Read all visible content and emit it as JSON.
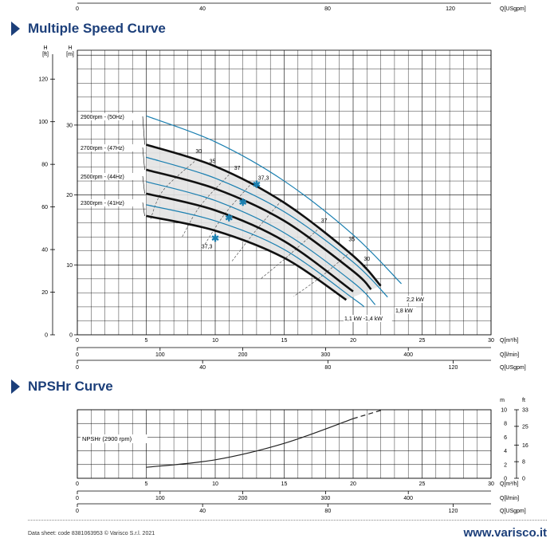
{
  "top_strip": {
    "labels": [
      "0",
      "40",
      "80",
      "120"
    ],
    "unit": "Q[USgpm]"
  },
  "sections": {
    "msc_title": "Multiple Speed Curve",
    "npshr_title": "NPSHr Curve"
  },
  "footer": {
    "left": "Data sheet: code 8381063953 © Varisco S.r.l. 2021",
    "right": "www.varisco.it"
  },
  "colors": {
    "brand": "#1c3f7a",
    "curve_black": "#111111",
    "curve_blue": "#1a7fb0",
    "band": "#e3e3e3"
  },
  "chart_data": [
    {
      "type": "line",
      "title": "Multiple Speed Curve",
      "x_axes": [
        {
          "label": "Q[m³/h]",
          "ticks": [
            0,
            5,
            10,
            15,
            20,
            25,
            30
          ],
          "range": [
            0,
            30
          ]
        },
        {
          "label": "Q[l/min]",
          "ticks": [
            0,
            100,
            200,
            300,
            400
          ]
        },
        {
          "label": "Q[USgpm]",
          "ticks": [
            0,
            40,
            80,
            120
          ]
        }
      ],
      "y_axes": [
        {
          "label": "H [ft]",
          "ticks": [
            0,
            20,
            40,
            60,
            80,
            100,
            120
          ],
          "range": [
            0,
            131
          ]
        },
        {
          "label": "H [m]",
          "ticks": [
            0,
            10,
            20,
            30
          ],
          "range": [
            0,
            40
          ]
        }
      ],
      "series": [
        {
          "name": "2900rpm - (50Hz)",
          "points": [
            [
              5,
              27.2
            ],
            [
              10,
              24.1
            ],
            [
              15,
              18.9
            ],
            [
              20,
              11.3
            ],
            [
              22,
              7.0
            ]
          ]
        },
        {
          "name": "2700rpm - (47Hz)",
          "points": [
            [
              5,
              23.6
            ],
            [
              10,
              20.9
            ],
            [
              15,
              16.3
            ],
            [
              20,
              9.1
            ],
            [
              21.3,
              6.5
            ]
          ]
        },
        {
          "name": "2500rpm - (44Hz)",
          "points": [
            [
              5,
              20.2
            ],
            [
              10,
              17.8
            ],
            [
              15,
              13.4
            ],
            [
              20,
              6.2
            ]
          ]
        },
        {
          "name": "2300rpm - (41Hz)",
          "points": [
            [
              5,
              17.0
            ],
            [
              10,
              14.9
            ],
            [
              15,
              11.0
            ],
            [
              19.5,
              5.0
            ]
          ]
        }
      ],
      "power_curves": [
        {
          "label": "2,2 kW",
          "points": [
            [
              5,
              31.3
            ],
            [
              10,
              27.6
            ],
            [
              15,
              22.0
            ],
            [
              20,
              14.3
            ],
            [
              23.5,
              7.3
            ]
          ]
        },
        {
          "label": "1,8 kW",
          "points": [
            [
              5,
              25.4
            ],
            [
              10,
              22.4
            ],
            [
              15,
              17.6
            ],
            [
              20,
              10.4
            ],
            [
              22.5,
              5.4
            ]
          ]
        },
        {
          "label": "1,1 kW -1,4 kW",
          "points": [
            [
              5,
              21.9
            ],
            [
              10,
              19.2
            ],
            [
              15,
              14.6
            ],
            [
              20,
              7.5
            ],
            [
              21.6,
              4.3
            ]
          ]
        },
        {
          "label": "",
          "points": [
            [
              5,
              18.6
            ],
            [
              10,
              16.3
            ],
            [
              15,
              12.2
            ],
            [
              20,
              5.2
            ],
            [
              20.8,
              4.0
            ]
          ]
        }
      ],
      "efficiency_labels": [
        "30",
        "35",
        "37",
        "37,3",
        "37",
        "35",
        "30",
        "37,3"
      ],
      "speed_labels": [
        "2900rpm - (50Hz)",
        "2700rpm - (47Hz)",
        "2500rpm - (44Hz)",
        "2300rpm - (41Hz)"
      ],
      "grid": true
    },
    {
      "type": "line",
      "title": "NPSHr Curve",
      "x_axes": [
        {
          "label": "Q[m³/h]",
          "ticks": [
            0,
            5,
            10,
            15,
            20,
            25,
            30
          ],
          "range": [
            0,
            30
          ]
        },
        {
          "label": "Q[l/min]",
          "ticks": [
            0,
            100,
            200,
            300,
            400
          ]
        },
        {
          "label": "Q[USgpm]",
          "ticks": [
            0,
            40,
            80,
            120
          ]
        }
      ],
      "y_axes": [
        {
          "label": "m",
          "ticks": [
            0,
            2,
            4,
            6,
            8,
            10
          ],
          "range": [
            0,
            10
          ]
        },
        {
          "label": "ft",
          "ticks": [
            0,
            8,
            16,
            25,
            33
          ],
          "range": [
            0,
            33
          ]
        }
      ],
      "series": [
        {
          "name": "NPSHr (2900 rpm)",
          "points": [
            [
              5,
              1.6
            ],
            [
              10,
              2.7
            ],
            [
              15,
              5.1
            ],
            [
              20,
              8.7
            ]
          ],
          "dashed_ext": [
            [
              20,
              8.7
            ],
            [
              22,
              9.9
            ]
          ]
        }
      ],
      "grid": true
    }
  ]
}
